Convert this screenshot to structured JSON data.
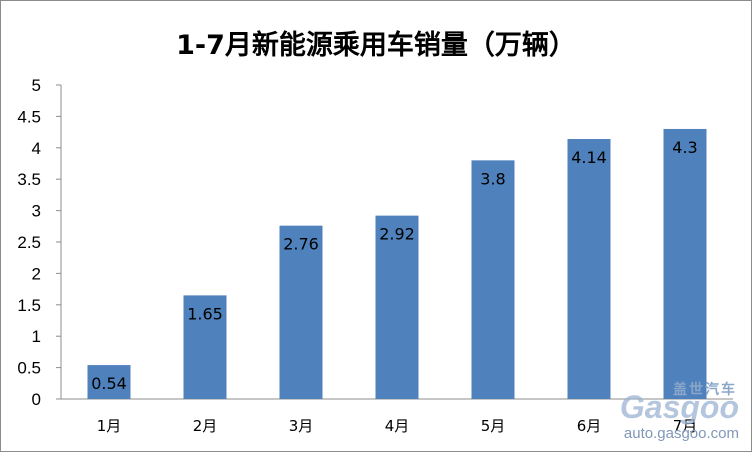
{
  "chart_data": {
    "type": "bar",
    "title": "1-7月新能源乘用车销量（万辆）",
    "categories": [
      "1月",
      "2月",
      "3月",
      "4月",
      "5月",
      "6月",
      "7月"
    ],
    "values": [
      0.54,
      1.65,
      2.76,
      2.92,
      3.8,
      4.14,
      4.3
    ],
    "data_labels": [
      "0.54",
      "1.65",
      "2.76",
      "2.92",
      "3.8",
      "4.14",
      "4.3"
    ],
    "yticks": [
      "0",
      "0.5",
      "1",
      "1.5",
      "2",
      "2.5",
      "3",
      "3.5",
      "4",
      "4.5",
      "5"
    ],
    "ylim": [
      0,
      5
    ],
    "grid": false,
    "legend": "none",
    "bar_color": "#4f81bd"
  },
  "watermark": {
    "chinese": "盖世汽车",
    "brand": "Gasgoo",
    "url": "auto.gasgoo.com"
  }
}
